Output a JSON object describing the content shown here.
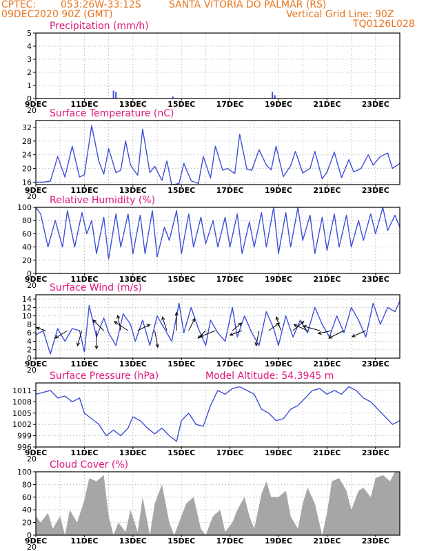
{
  "header": {
    "source": "CPTEC:",
    "coords": "053:26W-33:12S",
    "location": "SANTA VITORIA DO PALMAR (RS)",
    "run": "09DEC2020 90Z (GMT)",
    "grid_note": "Vertical Grid Line: 90Z",
    "code": "TQ0126L028"
  },
  "colors": {
    "line": "#3c4fd8",
    "title": "#e0187a",
    "header": "#e8731c",
    "cloud": "#a6a6a6",
    "wind": "#000000"
  },
  "x_axis": {
    "days_start": 9,
    "days_end": 24,
    "tick_labels": [
      "9DEC",
      "11DEC",
      "13DEC",
      "15DEC",
      "17DEC",
      "19DEC",
      "21DEC",
      "23DEC"
    ],
    "tick_days": [
      9,
      11,
      13,
      15,
      17,
      19,
      21,
      23
    ],
    "year_stub": "20"
  },
  "chart_data": [
    {
      "type": "bar",
      "title": "Precipitation (mm/h)",
      "ylim": [
        0,
        5
      ],
      "yticks": [
        "0",
        "1",
        "2",
        "3",
        "4",
        "5"
      ],
      "grid": true,
      "x": [
        12.2,
        12.3,
        14.65,
        18.75,
        18.85
      ],
      "values": [
        0.6,
        0.5,
        0.15,
        0.5,
        0.25
      ]
    },
    {
      "type": "line",
      "title": "Surface Temperature (nC)",
      "ylim": [
        15.3,
        34
      ],
      "yticks": [
        "16",
        "20",
        "24",
        "28",
        "32"
      ],
      "ytick_values": [
        16,
        20,
        24,
        28,
        32
      ],
      "grid": true,
      "x": [
        9,
        9.3,
        9.6,
        9.9,
        10.2,
        10.5,
        10.8,
        11,
        11.3,
        11.6,
        11.8,
        12,
        12.3,
        12.5,
        12.7,
        12.9,
        13.2,
        13.4,
        13.7,
        13.9,
        14.2,
        14.4,
        14.6,
        14.9,
        15.1,
        15.4,
        15.7,
        15.9,
        16.2,
        16.4,
        16.7,
        16.9,
        17.2,
        17.4,
        17.7,
        17.9,
        18.2,
        18.5,
        18.7,
        18.9,
        19.2,
        19.5,
        19.7,
        20,
        20.3,
        20.5,
        20.8,
        21,
        21.3,
        21.6,
        21.9,
        22.1,
        22.4,
        22.7,
        22.9,
        23.2,
        23.5,
        23.7,
        24
      ],
      "values": [
        16,
        16,
        16.3,
        23.5,
        17.5,
        26.5,
        17.5,
        18.2,
        32.5,
        22,
        18.4,
        25.8,
        18.8,
        19.5,
        28,
        21,
        18,
        31.5,
        18.8,
        20.6,
        16.5,
        22.2,
        15.2,
        15.6,
        21.5,
        16.4,
        15.6,
        23.5,
        17.2,
        26.5,
        19.5,
        20,
        18.5,
        30,
        19.7,
        19.5,
        25.5,
        21,
        19.6,
        26.5,
        17.6,
        20.8,
        25,
        18.7,
        20,
        25,
        17,
        18.9,
        24.8,
        17.3,
        22.6,
        19,
        20,
        24,
        21,
        23.5,
        24.5,
        20,
        21.5
      ]
    },
    {
      "type": "line",
      "title": "Relative Humidity (%)",
      "ylim": [
        0,
        100
      ],
      "yticks": [
        "0",
        "20",
        "40",
        "60",
        "80",
        "100"
      ],
      "ytick_values": [
        0,
        20,
        40,
        60,
        80,
        100
      ],
      "grid": true,
      "x": [
        9,
        9.2,
        9.5,
        9.8,
        10.1,
        10.3,
        10.6,
        10.9,
        11.1,
        11.3,
        11.5,
        11.8,
        12,
        12.3,
        12.5,
        12.8,
        13,
        13.3,
        13.5,
        13.8,
        14,
        14.3,
        14.5,
        14.8,
        15,
        15.3,
        15.5,
        15.8,
        16,
        16.3,
        16.5,
        16.8,
        17,
        17.3,
        17.5,
        17.8,
        18,
        18.3,
        18.5,
        18.8,
        19,
        19.3,
        19.5,
        19.8,
        20,
        20.3,
        20.5,
        20.8,
        21,
        21.3,
        21.5,
        21.8,
        22,
        22.3,
        22.5,
        22.8,
        23,
        23.3,
        23.5,
        23.8,
        24
      ],
      "values": [
        100,
        90,
        40,
        80,
        40,
        95,
        40,
        92,
        60,
        80,
        30,
        85,
        22,
        90,
        40,
        90,
        30,
        88,
        30,
        95,
        25,
        70,
        50,
        95,
        30,
        90,
        40,
        85,
        45,
        80,
        40,
        85,
        40,
        90,
        30,
        78,
        40,
        92,
        40,
        100,
        30,
        92,
        40,
        100,
        50,
        88,
        30,
        85,
        35,
        90,
        40,
        88,
        40,
        80,
        50,
        90,
        60,
        100,
        65,
        88,
        70
      ]
    },
    {
      "type": "line",
      "title": "Surface Wind (m/s)",
      "ylim": [
        0,
        15
      ],
      "yticks": [
        "0",
        "2",
        "4",
        "6",
        "8",
        "10",
        "12",
        "14"
      ],
      "ytick_values": [
        0,
        2,
        4,
        6,
        8,
        10,
        12,
        14
      ],
      "grid": true,
      "x": [
        9,
        9.3,
        9.6,
        9.9,
        10.2,
        10.5,
        10.8,
        11,
        11.2,
        11.5,
        11.8,
        12,
        12.3,
        12.6,
        12.9,
        13.1,
        13.4,
        13.7,
        14,
        14.3,
        14.6,
        14.9,
        15.1,
        15.4,
        15.7,
        16,
        16.2,
        16.5,
        16.8,
        17.1,
        17.3,
        17.6,
        17.9,
        18.2,
        18.5,
        18.8,
        19,
        19.3,
        19.6,
        19.9,
        20.2,
        20.5,
        20.8,
        21.1,
        21.4,
        21.7,
        22,
        22.3,
        22.6,
        22.9,
        23.2,
        23.5,
        23.8,
        24
      ],
      "values": [
        5.5,
        6.5,
        1,
        7,
        4,
        7,
        6.5,
        1.5,
        12.5,
        5,
        9.5,
        6,
        3,
        10.5,
        8,
        4,
        9,
        3,
        10,
        7,
        4,
        13,
        6,
        12,
        7,
        3,
        9,
        6,
        4,
        12,
        5,
        10,
        6,
        3,
        11,
        7,
        3,
        10,
        5,
        9,
        6,
        12,
        8,
        5,
        10,
        6,
        12,
        9,
        5,
        13,
        8,
        12,
        11,
        13.5
      ]
    },
    {
      "type": "line",
      "title": "Surface Pressure (hPa)",
      "subtitle": "Model Altitude: 54.3945 m",
      "ylim": [
        996,
        1013
      ],
      "yticks": [
        "996",
        "999",
        "1002",
        "1005",
        "1008",
        "1011"
      ],
      "ytick_values": [
        996,
        999,
        1002,
        1005,
        1008,
        1011
      ],
      "grid": true,
      "x": [
        9,
        9.3,
        9.6,
        9.9,
        10.2,
        10.5,
        10.8,
        11,
        11.3,
        11.6,
        11.9,
        12.2,
        12.5,
        12.8,
        13,
        13.3,
        13.6,
        13.9,
        14.2,
        14.5,
        14.8,
        15,
        15.3,
        15.6,
        15.9,
        16.2,
        16.5,
        16.8,
        17.1,
        17.4,
        17.7,
        18,
        18.3,
        18.6,
        18.9,
        19.2,
        19.5,
        19.8,
        20.1,
        20.4,
        20.7,
        21,
        21.3,
        21.6,
        21.9,
        22.2,
        22.5,
        22.8,
        23.1,
        23.4,
        23.7,
        24
      ],
      "values": [
        1010,
        1010.5,
        1011,
        1009,
        1009.5,
        1008,
        1009,
        1005,
        1003.5,
        1002,
        999,
        1000.5,
        999,
        1001,
        1004,
        1003,
        1001,
        999.5,
        1001,
        999,
        997.5,
        1003,
        1005,
        1002,
        1001.5,
        1007,
        1011,
        1010,
        1011.5,
        1012,
        1011,
        1010,
        1006,
        1005,
        1003,
        1003.5,
        1006,
        1007,
        1009,
        1011,
        1011.5,
        1010,
        1011,
        1010,
        1012,
        1011,
        1009,
        1008,
        1006,
        1004,
        1002,
        1003
      ]
    },
    {
      "type": "area",
      "title": "Cloud Cover (%)",
      "ylim": [
        0,
        100
      ],
      "yticks": [
        "0",
        "20",
        "40",
        "60",
        "80",
        "100"
      ],
      "ytick_values": [
        0,
        20,
        40,
        60,
        80,
        100
      ],
      "grid": true,
      "x": [
        9,
        9.2,
        9.5,
        9.7,
        10,
        10.2,
        10.4,
        10.7,
        11,
        11.2,
        11.5,
        11.8,
        12,
        12.2,
        12.4,
        12.7,
        12.9,
        13.2,
        13.4,
        13.7,
        13.9,
        14.2,
        14.5,
        14.7,
        15,
        15.2,
        15.5,
        15.8,
        16,
        16.3,
        16.6,
        16.8,
        17.1,
        17.3,
        17.6,
        17.8,
        18,
        18.3,
        18.5,
        18.7,
        19,
        19.3,
        19.5,
        19.8,
        20,
        20.2,
        20.5,
        20.8,
        21,
        21.2,
        21.5,
        21.8,
        22,
        22.3,
        22.5,
        22.8,
        23,
        23.3,
        23.6,
        23.8,
        24
      ],
      "values": [
        30,
        20,
        35,
        10,
        30,
        0,
        40,
        20,
        55,
        90,
        85,
        95,
        30,
        0,
        20,
        5,
        40,
        5,
        60,
        0,
        50,
        80,
        20,
        0,
        30,
        50,
        60,
        10,
        0,
        30,
        40,
        5,
        20,
        40,
        60,
        30,
        10,
        65,
        85,
        60,
        60,
        70,
        30,
        10,
        50,
        75,
        50,
        0,
        35,
        85,
        90,
        70,
        40,
        70,
        75,
        60,
        90,
        95,
        85,
        100,
        100
      ]
    }
  ],
  "wind_arrows": [
    {
      "day": 9.4,
      "u": -0.6,
      "v": 0.2
    },
    {
      "day": 10.3,
      "u": -0.8,
      "v": -0.5
    },
    {
      "day": 10.9,
      "u": -0.3,
      "v": -1
    },
    {
      "day": 11.5,
      "u": 0,
      "v": -1.2
    },
    {
      "day": 11.8,
      "u": -0.7,
      "v": 0.7
    },
    {
      "day": 12.5,
      "u": -0.2,
      "v": 1
    },
    {
      "day": 12.8,
      "u": -0.9,
      "v": 0.6
    },
    {
      "day": 13.2,
      "u": 0.8,
      "v": 0.4
    },
    {
      "day": 13.9,
      "u": 0.2,
      "v": -1.1
    },
    {
      "day": 14.4,
      "u": -0.3,
      "v": 0.9
    },
    {
      "day": 14.8,
      "u": 0,
      "v": 1.2
    },
    {
      "day": 15.3,
      "u": 0.4,
      "v": 0.8
    },
    {
      "day": 16,
      "u": -0.5,
      "v": -0.5
    },
    {
      "day": 16.4,
      "u": -1,
      "v": -0.4
    },
    {
      "day": 17.1,
      "u": 0.6,
      "v": 0.5
    },
    {
      "day": 17.5,
      "u": -0.8,
      "v": -0.3
    },
    {
      "day": 18.2,
      "u": -0.2,
      "v": -1
    },
    {
      "day": 18.6,
      "u": 0.7,
      "v": 0.5
    },
    {
      "day": 19.1,
      "u": -0.3,
      "v": 0.9
    },
    {
      "day": 19.6,
      "u": 0.7,
      "v": 0.6
    },
    {
      "day": 20.2,
      "u": -0.9,
      "v": 0.4
    },
    {
      "day": 20.7,
      "u": -1.1,
      "v": 0.3
    },
    {
      "day": 21.2,
      "u": -0.9,
      "v": -0.2
    },
    {
      "day": 21.7,
      "u": -1,
      "v": -0.5
    },
    {
      "day": 22.6,
      "u": -0.9,
      "v": -0.4
    }
  ]
}
